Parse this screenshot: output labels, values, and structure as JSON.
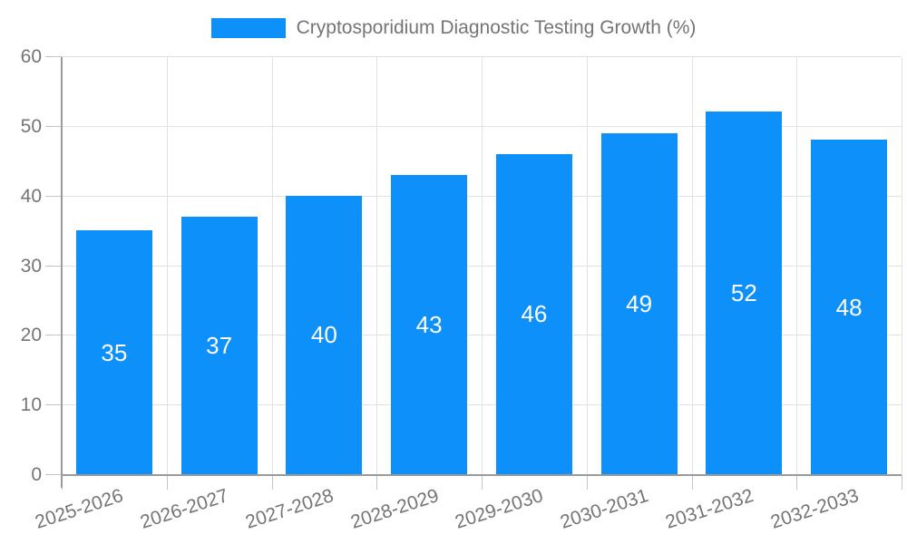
{
  "legend": {
    "label": "Cryptosporidium Diagnostic Testing Growth (%)"
  },
  "chart_data": {
    "type": "bar",
    "title": "Cryptosporidium Diagnostic Testing Growth (%)",
    "categories": [
      "2025-2026",
      "2026-2027",
      "2027-2028",
      "2028-2029",
      "2029-2030",
      "2030-2031",
      "2031-2032",
      "2032-2033"
    ],
    "values": [
      35,
      37,
      40,
      43,
      46,
      49,
      52,
      48
    ],
    "xlabel": "",
    "ylabel": "",
    "ylim": [
      0,
      60
    ],
    "yticks": [
      0,
      10,
      20,
      30,
      40,
      50,
      60
    ],
    "grid": true,
    "legend_position": "top-center",
    "x_tick_rotation_deg": -18,
    "colors": {
      "bar": "#0E90FB",
      "value_label": "#FFFFFF",
      "axis_text": "#757575",
      "grid_line": "#E2E2E2",
      "tick_line": "#C4C4C4",
      "axis_line": "#9A9A9A",
      "background": "#FFFFFF"
    }
  }
}
